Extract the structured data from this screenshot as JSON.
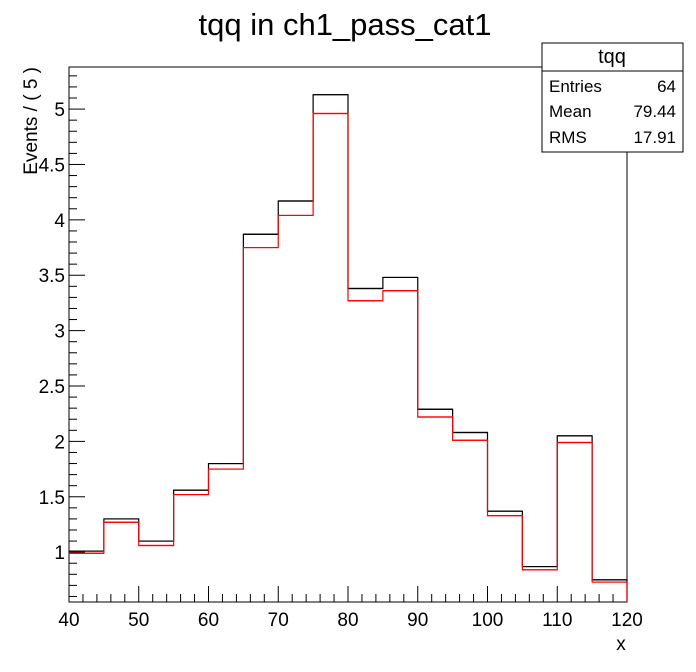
{
  "chart_data": {
    "type": "bar",
    "title": "tqq in ch1_pass_cat1",
    "xlabel": "x",
    "ylabel": "Events / ( 5 )",
    "xlim": [
      40,
      120
    ],
    "ylim": [
      0.55,
      5.38
    ],
    "bin_edges": [
      40,
      45,
      50,
      55,
      60,
      65,
      70,
      75,
      80,
      85,
      90,
      95,
      100,
      105,
      110,
      115,
      120
    ],
    "x_ticks": [
      "40",
      "50",
      "60",
      "70",
      "80",
      "90",
      "100",
      "110",
      "120"
    ],
    "y_ticks": [
      "1",
      "1.5",
      "2",
      "2.5",
      "3",
      "3.5",
      "4",
      "4.5",
      "5"
    ],
    "series": [
      {
        "color": "#000000",
        "values": [
          1.01,
          1.3,
          1.1,
          1.56,
          1.8,
          3.87,
          4.17,
          5.13,
          3.38,
          3.48,
          2.29,
          2.08,
          1.37,
          0.87,
          2.05,
          0.75
        ]
      },
      {
        "color": "#ff0000",
        "values": [
          0.99,
          1.27,
          1.06,
          1.52,
          1.75,
          3.75,
          4.04,
          4.96,
          3.27,
          3.36,
          2.22,
          2.01,
          1.33,
          0.84,
          1.99,
          0.73
        ]
      }
    ],
    "stats_box": {
      "title": "tqq",
      "rows": [
        {
          "label": "Entries",
          "value": "64"
        },
        {
          "label": "Mean",
          "value": "79.44"
        },
        {
          "label": "RMS",
          "value": "17.91"
        }
      ]
    },
    "legend": "none",
    "grid": false
  }
}
